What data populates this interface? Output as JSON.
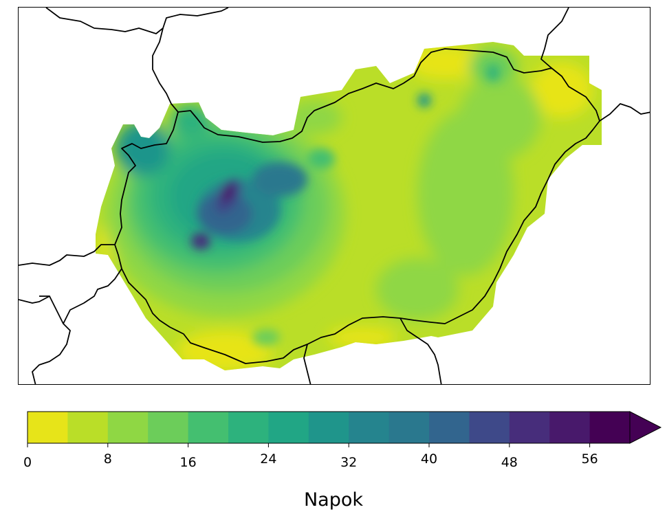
{
  "colorbar": {
    "unit_label": "Napok",
    "ticks": [
      0,
      8,
      16,
      24,
      32,
      40,
      48,
      56
    ],
    "levels": [
      0,
      4,
      8,
      12,
      16,
      20,
      24,
      28,
      32,
      36,
      40,
      44,
      48,
      52,
      56,
      60
    ],
    "extend": "max",
    "colors": [
      "#e7e419",
      "#bade28",
      "#8fd744",
      "#6ccd5a",
      "#44bf70",
      "#2db27d",
      "#21a685",
      "#1f958b",
      "#25848e",
      "#2a788e",
      "#32658e",
      "#3e4989",
      "#472d7b",
      "#48196b",
      "#440154"
    ],
    "extend_color": "#440154"
  },
  "map": {
    "region": "Hungary",
    "colormap": "viridis_r",
    "max_value_area": "north-west (Bakony / Transdanubia)",
    "borders": "country boundaries"
  }
}
